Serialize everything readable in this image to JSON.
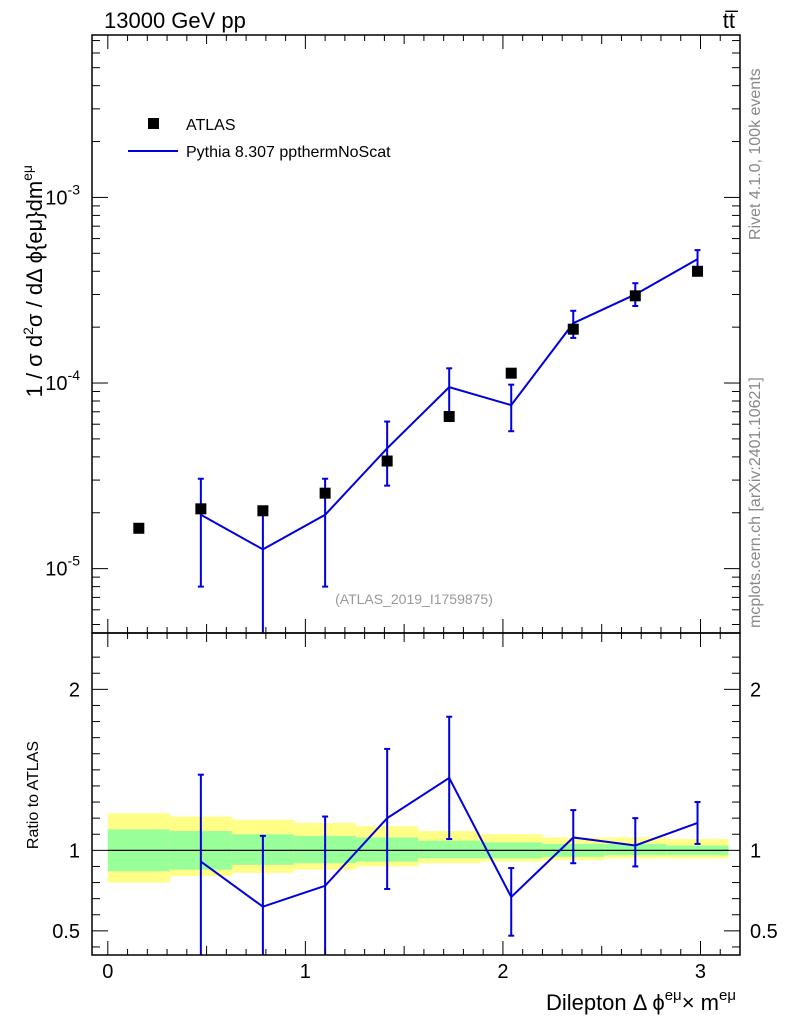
{
  "header": {
    "energy_label": "13000 GeV pp",
    "process_label": "tt̅"
  },
  "side_labels": {
    "rivet": "Rivet 4.1.0,  100k events",
    "mcplots": "mcplots.cern.ch [arXiv:2401.10621]"
  },
  "analysis_tag": "(ATLAS_2019_I1759875)",
  "legend": {
    "data_label": "ATLAS",
    "mc_label": "Pythia 8.307 ppthermNoScat"
  },
  "colors": {
    "data": "#000000",
    "mc": "#0000dd",
    "band_inner": "#99ff99",
    "band_outer": "#ffff88"
  },
  "chart_data": [
    {
      "type": "scatter",
      "panel": "main",
      "yscale": "log",
      "ylabel": "1 / σ  d²σ / dΔ ϕ{eμ}dm^eμ",
      "ylim": [
        4.5e-06,
        0.0075
      ],
      "xlim": [
        -0.08,
        3.2
      ],
      "y_tick_labels": [
        "10^-5",
        "10^-4",
        "10^-3"
      ],
      "series": [
        {
          "name": "ATLAS",
          "x": [
            0.157,
            0.471,
            0.785,
            1.1,
            1.414,
            1.728,
            2.042,
            2.356,
            2.67,
            2.985
          ],
          "y": [
            1.65e-05,
            2.1e-05,
            2.05e-05,
            2.55e-05,
            3.8e-05,
            6.6e-05,
            0.000113,
            0.000195,
            0.000295,
            0.0004
          ]
        },
        {
          "name": "Pythia 8.307 ppthermNoScat",
          "x": [
            0.471,
            0.785,
            1.1,
            1.414,
            1.728,
            2.042,
            2.356,
            2.67,
            2.985
          ],
          "y": [
            1.95e-05,
            1.27e-05,
            1.95e-05,
            4.45e-05,
            9.5e-05,
            7.6e-05,
            0.00021,
            0.0003,
            0.000465
          ],
          "err_low": [
            8e-06,
            4e-06,
            8e-06,
            2.8e-05,
            6.8e-05,
            5.5e-05,
            0.000175,
            0.00026,
            0.00041
          ],
          "err_high": [
            3.05e-05,
            2.1e-05,
            3.05e-05,
            6.2e-05,
            0.00012,
            9.8e-05,
            0.000245,
            0.000345,
            0.00052
          ]
        }
      ]
    },
    {
      "type": "line",
      "panel": "ratio",
      "ylabel": "Ratio to ATLAS",
      "xlabel": "Dilepton Δ ϕ^eμ × m^eμ",
      "ylim": [
        0.35,
        2.35
      ],
      "xlim": [
        -0.08,
        3.2
      ],
      "x_tick_labels": [
        "0",
        "1",
        "2",
        "3"
      ],
      "y_tick_labels": [
        "0.5",
        "1",
        "2"
      ],
      "reference": 1.0,
      "series": [
        {
          "name": "Pythia 8.307 ppthermNoScat / ATLAS",
          "x": [
            0.471,
            0.785,
            1.1,
            1.414,
            1.728,
            2.042,
            2.356,
            2.67,
            2.985
          ],
          "y": [
            0.93,
            0.65,
            0.78,
            1.2,
            1.45,
            0.71,
            1.08,
            1.03,
            1.17
          ],
          "err_low": [
            0.3,
            0.3,
            0.3,
            0.76,
            1.07,
            0.47,
            0.92,
            0.9,
            1.04
          ],
          "err_high": [
            1.47,
            1.09,
            1.21,
            1.63,
            1.83,
            0.89,
            1.25,
            1.2,
            1.3
          ]
        }
      ],
      "uncertainty_bands": {
        "bin_edges": [
          0.0,
          0.314,
          0.628,
          0.942,
          1.257,
          1.571,
          1.885,
          2.199,
          2.513,
          2.827,
          3.142
        ],
        "inner_low": [
          0.87,
          0.88,
          0.91,
          0.92,
          0.93,
          0.95,
          0.95,
          0.96,
          0.97,
          0.97
        ],
        "inner_high": [
          1.13,
          1.12,
          1.1,
          1.09,
          1.08,
          1.06,
          1.05,
          1.04,
          1.04,
          1.03
        ],
        "outer_low": [
          0.8,
          0.84,
          0.86,
          0.88,
          0.9,
          0.92,
          0.93,
          0.94,
          0.95,
          0.95
        ],
        "outer_high": [
          1.23,
          1.21,
          1.19,
          1.17,
          1.15,
          1.12,
          1.1,
          1.08,
          1.08,
          1.07
        ]
      }
    }
  ]
}
